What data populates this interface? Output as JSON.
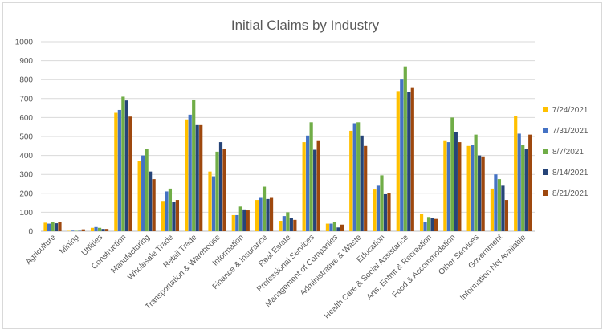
{
  "chart_data": {
    "type": "bar",
    "title": "Initial Claims by Industry",
    "xlabel": "",
    "ylabel": "",
    "ylim": [
      0,
      1000
    ],
    "yticks": [
      0,
      100,
      200,
      300,
      400,
      500,
      600,
      700,
      800,
      900,
      1000
    ],
    "grid": "horizontal",
    "legend_position": "right",
    "categories": [
      "Agriculture",
      "Mining",
      "Utilities",
      "Construction",
      "Manufacturing",
      "Wholesale Trade",
      "Retail Trade",
      "Transportation & Warehouse",
      "Information",
      "Finance & Insurance",
      "Real Estate",
      "Professional Services",
      "Management of Companies",
      "Administrative & Waste",
      "Education",
      "Health Care & Social Assistance",
      "Arts, Entmt & Recreation",
      "Food & Accommodation",
      "Other Services",
      "Government",
      "Information Not Available"
    ],
    "series": [
      {
        "name": "7/24/2021",
        "color": "#FFC000",
        "values": [
          45,
          2,
          18,
          625,
          370,
          160,
          590,
          315,
          85,
          165,
          55,
          470,
          40,
          530,
          220,
          740,
          90,
          480,
          450,
          225,
          610
        ]
      },
      {
        "name": "7/31/2021",
        "color": "#4472C4",
        "values": [
          40,
          3,
          22,
          640,
          400,
          210,
          615,
          290,
          85,
          180,
          80,
          505,
          40,
          570,
          240,
          800,
          50,
          470,
          455,
          300,
          515
        ]
      },
      {
        "name": "8/7/2021",
        "color": "#70AD47",
        "values": [
          48,
          2,
          18,
          710,
          435,
          225,
          695,
          420,
          130,
          235,
          100,
          575,
          48,
          575,
          295,
          870,
          75,
          600,
          510,
          275,
          455
        ]
      },
      {
        "name": "8/14/2021",
        "color": "#264478",
        "values": [
          42,
          2,
          12,
          690,
          315,
          155,
          560,
          470,
          115,
          170,
          70,
          430,
          20,
          505,
          195,
          735,
          68,
          525,
          400,
          240,
          435
        ]
      },
      {
        "name": "8/21/2021",
        "color": "#9E480E",
        "values": [
          48,
          10,
          12,
          605,
          275,
          165,
          560,
          435,
          110,
          180,
          60,
          480,
          35,
          450,
          200,
          760,
          65,
          470,
          395,
          165,
          510
        ]
      }
    ]
  }
}
